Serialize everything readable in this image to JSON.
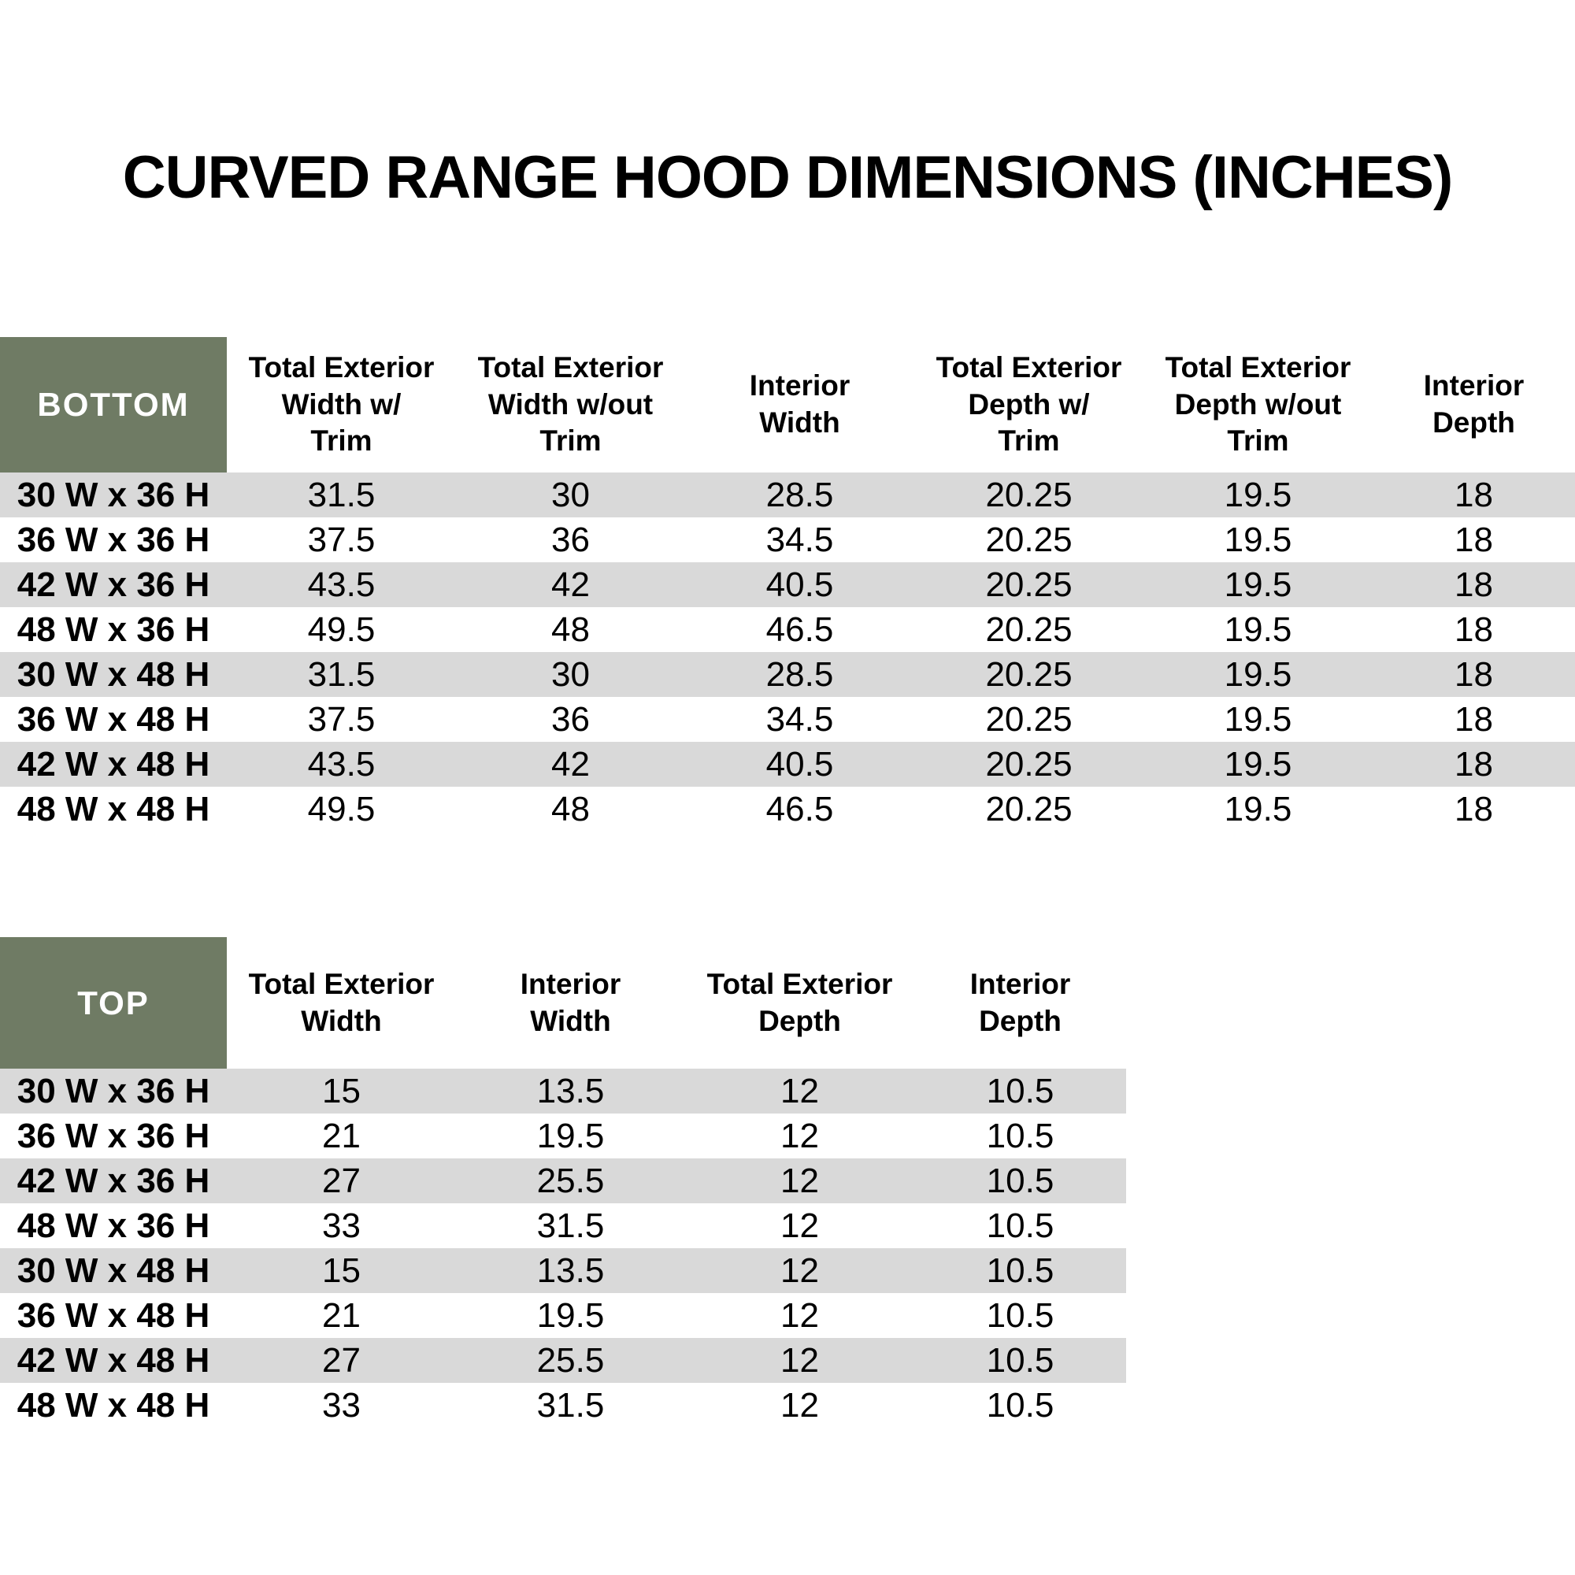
{
  "title": "CURVED RANGE HOOD DIMENSIONS (INCHES)",
  "colors": {
    "header_green": "#6f7b64",
    "stripe_gray": "#d9d9d9",
    "row_white": "#ffffff",
    "text_black": "#000000",
    "corner_text_white": "#ffffff"
  },
  "bottom_table": {
    "corner_label": "BOTTOM",
    "columns": [
      "Total Exterior\nWidth w/\nTrim",
      "Total Exterior\nWidth w/out\nTrim",
      "Interior\nWidth",
      "Total Exterior\nDepth w/\nTrim",
      "Total Exterior\nDepth w/out\nTrim",
      "Interior\nDepth"
    ],
    "rows": [
      {
        "label": "30 W x 36 H",
        "cells": [
          "31.5",
          "30",
          "28.5",
          "20.25",
          "19.5",
          "18"
        ]
      },
      {
        "label": "36 W x 36 H",
        "cells": [
          "37.5",
          "36",
          "34.5",
          "20.25",
          "19.5",
          "18"
        ]
      },
      {
        "label": "42 W x 36 H",
        "cells": [
          "43.5",
          "42",
          "40.5",
          "20.25",
          "19.5",
          "18"
        ]
      },
      {
        "label": "48 W x 36 H",
        "cells": [
          "49.5",
          "48",
          "46.5",
          "20.25",
          "19.5",
          "18"
        ]
      },
      {
        "label": "30 W x 48 H",
        "cells": [
          "31.5",
          "30",
          "28.5",
          "20.25",
          "19.5",
          "18"
        ]
      },
      {
        "label": "36 W x 48 H",
        "cells": [
          "37.5",
          "36",
          "34.5",
          "20.25",
          "19.5",
          "18"
        ]
      },
      {
        "label": "42 W x 48 H",
        "cells": [
          "43.5",
          "42",
          "40.5",
          "20.25",
          "19.5",
          "18"
        ]
      },
      {
        "label": "48 W x 48 H",
        "cells": [
          "49.5",
          "48",
          "46.5",
          "20.25",
          "19.5",
          "18"
        ]
      }
    ]
  },
  "top_table": {
    "corner_label": "TOP",
    "columns": [
      "Total Exterior\nWidth",
      "Interior\nWidth",
      "Total Exterior\nDepth",
      "Interior\nDepth"
    ],
    "rows": [
      {
        "label": "30 W x 36 H",
        "cells": [
          "15",
          "13.5",
          "12",
          "10.5"
        ]
      },
      {
        "label": "36 W x 36 H",
        "cells": [
          "21",
          "19.5",
          "12",
          "10.5"
        ]
      },
      {
        "label": "42 W x 36 H",
        "cells": [
          "27",
          "25.5",
          "12",
          "10.5"
        ]
      },
      {
        "label": "48 W x 36 H",
        "cells": [
          "33",
          "31.5",
          "12",
          "10.5"
        ]
      },
      {
        "label": "30 W x 48 H",
        "cells": [
          "15",
          "13.5",
          "12",
          "10.5"
        ]
      },
      {
        "label": "36 W x 48 H",
        "cells": [
          "21",
          "19.5",
          "12",
          "10.5"
        ]
      },
      {
        "label": "42 W x 48 H",
        "cells": [
          "27",
          "25.5",
          "12",
          "10.5"
        ]
      },
      {
        "label": "48 W x 48 H",
        "cells": [
          "33",
          "31.5",
          "12",
          "10.5"
        ]
      }
    ]
  }
}
